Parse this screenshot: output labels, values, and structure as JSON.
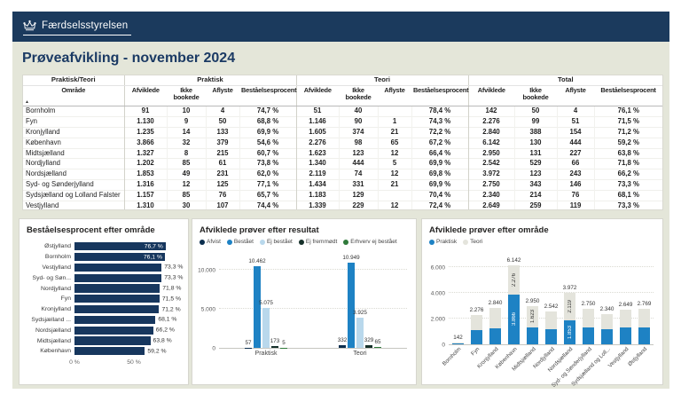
{
  "app": {
    "logo_text": "Færdselsstyrelsen"
  },
  "page": {
    "title": "Prøveafvikling - november 2024"
  },
  "colors": {
    "header_navy": "#1b3a5d",
    "page_background": "#e4e6d9",
    "bar_navy": "#17375e",
    "praktisk_blue": "#1e82c4",
    "teori_gray": "#e4e4dc"
  },
  "table": {
    "corner_header": "Praktisk/Teori",
    "corner_sub": "Område",
    "groups": [
      "Praktisk",
      "Teori",
      "Total"
    ],
    "sub_columns": [
      "Afviklede",
      "Ikke bookede",
      "Aflyste",
      "Beståelsesprocent"
    ],
    "rows": [
      {
        "area": "Bornholm",
        "cells": [
          "91",
          "10",
          "4",
          "74,7 %",
          "51",
          "40",
          "",
          "78,4 %",
          "142",
          "50",
          "4",
          "76,1 %"
        ]
      },
      {
        "area": "Fyn",
        "cells": [
          "1.130",
          "9",
          "50",
          "68,8 %",
          "1.146",
          "90",
          "1",
          "74,3 %",
          "2.276",
          "99",
          "51",
          "71,5 %"
        ]
      },
      {
        "area": "Kronjylland",
        "cells": [
          "1.235",
          "14",
          "133",
          "69,9 %",
          "1.605",
          "374",
          "21",
          "72,2 %",
          "2.840",
          "388",
          "154",
          "71,2 %"
        ]
      },
      {
        "area": "København",
        "cells": [
          "3.866",
          "32",
          "379",
          "54,6 %",
          "2.276",
          "98",
          "65",
          "67,2 %",
          "6.142",
          "130",
          "444",
          "59,2 %"
        ]
      },
      {
        "area": "Midtsjælland",
        "cells": [
          "1.327",
          "8",
          "215",
          "60,7 %",
          "1.623",
          "123",
          "12",
          "66,4 %",
          "2.950",
          "131",
          "227",
          "63,8 %"
        ]
      },
      {
        "area": "Nordjylland",
        "cells": [
          "1.202",
          "85",
          "61",
          "73,8 %",
          "1.340",
          "444",
          "5",
          "69,9 %",
          "2.542",
          "529",
          "66",
          "71,8 %"
        ]
      },
      {
        "area": "Nordsjælland",
        "cells": [
          "1.853",
          "49",
          "231",
          "62,0 %",
          "2.119",
          "74",
          "12",
          "69,8 %",
          "3.972",
          "123",
          "243",
          "66,2 %"
        ]
      },
      {
        "area": "Syd- og Sønderjylland",
        "cells": [
          "1.316",
          "12",
          "125",
          "77,1 %",
          "1.434",
          "331",
          "21",
          "69,9 %",
          "2.750",
          "343",
          "146",
          "73,3 %"
        ]
      },
      {
        "area": "Sydsjælland og Lolland Falster",
        "cells": [
          "1.157",
          "85",
          "76",
          "65,7 %",
          "1.183",
          "129",
          "",
          "70,4 %",
          "2.340",
          "214",
          "76",
          "68,1 %"
        ]
      },
      {
        "area": "Vestjylland",
        "cells": [
          "1.310",
          "30",
          "107",
          "74,4 %",
          "1.339",
          "229",
          "12",
          "72,4 %",
          "2.649",
          "259",
          "119",
          "73,3 %"
        ]
      },
      {
        "area": "Østjylland",
        "cells": [
          "1.285",
          "58",
          "108",
          "82,0 %",
          "1.484",
          "281",
          "11",
          "72,2 %",
          "2.769",
          "339",
          "119",
          "76,7 %"
        ]
      }
    ],
    "total_row": {
      "area": "Total",
      "cells": [
        "15.772",
        "392",
        "1.489",
        "66,3 %",
        "15.600",
        "2.213",
        "160",
        "70,2 %",
        "31.372",
        "2.605",
        "1.649",
        "68,2 %"
      ]
    }
  },
  "chart_data": [
    {
      "type": "bar",
      "title": "Beståelsesprocent efter område",
      "orientation": "horizontal",
      "bar_color": "#17375e",
      "axis_max": 88,
      "x_ticks": [
        {
          "label": "0 %",
          "value": 0
        },
        {
          "label": "50 %",
          "value": 50
        }
      ],
      "bars": [
        {
          "label": "Østjylland",
          "value": 76.7,
          "text": "76,7 %",
          "inside": true
        },
        {
          "label": "Bornholm",
          "value": 76.1,
          "text": "76,1 %",
          "inside": true
        },
        {
          "label": "Vestjylland",
          "value": 73.3,
          "text": "73,3 %",
          "inside": false
        },
        {
          "label": "Syd- og Søn...",
          "value": 73.3,
          "text": "73,3 %",
          "inside": false
        },
        {
          "label": "Nordjylland",
          "value": 71.8,
          "text": "71,8 %",
          "inside": false
        },
        {
          "label": "Fyn",
          "value": 71.5,
          "text": "71,5 %",
          "inside": false
        },
        {
          "label": "Kronjylland",
          "value": 71.2,
          "text": "71,2 %",
          "inside": false
        },
        {
          "label": "Sydsjælland ...",
          "value": 68.1,
          "text": "68,1 %",
          "inside": false
        },
        {
          "label": "Nordsjælland",
          "value": 66.2,
          "text": "66,2 %",
          "inside": false
        },
        {
          "label": "Midtsjælland",
          "value": 63.8,
          "text": "63,8 %",
          "inside": false
        },
        {
          "label": "København",
          "value": 59.2,
          "text": "59,2 %",
          "inside": false
        }
      ]
    },
    {
      "type": "bar",
      "title": "Afviklede prøver efter resultat",
      "orientation": "vertical-grouped",
      "axis_max": 11400,
      "y_ticks": [
        {
          "label": "0",
          "value": 0
        },
        {
          "label": "5.000",
          "value": 5000
        },
        {
          "label": "10.000",
          "value": 10000
        }
      ],
      "series": [
        {
          "name": "Afvist",
          "color": "#0b2e4e"
        },
        {
          "name": "Bestået",
          "color": "#1e82c4"
        },
        {
          "name": "Ej bestået",
          "color": "#b9d8ec"
        },
        {
          "name": "Ej fremmødt",
          "color": "#16302a"
        },
        {
          "name": "Erhverv ej bestået",
          "color": "#2f7a3a"
        }
      ],
      "groups": [
        {
          "label": "Praktisk",
          "values": [
            57,
            10462,
            5075,
            173,
            5
          ],
          "labels": [
            "57",
            "10.462",
            "5.075",
            "173",
            "5"
          ]
        },
        {
          "label": "Teori",
          "values": [
            332,
            10949,
            3925,
            329,
            65
          ],
          "labels": [
            "332",
            "10.949",
            "3.925",
            "329",
            "65"
          ]
        }
      ]
    },
    {
      "type": "bar",
      "title": "Afviklede prøver efter område",
      "orientation": "vertical-stacked",
      "axis_max": 6600,
      "y_ticks": [
        {
          "label": "0",
          "value": 0
        },
        {
          "label": "2.000",
          "value": 2000
        },
        {
          "label": "4.000",
          "value": 4000
        },
        {
          "label": "6.000",
          "value": 6000
        }
      ],
      "legend": [
        {
          "name": "Praktisk",
          "color": "#1e82c4"
        },
        {
          "name": "Teori",
          "color": "#e4e4dc"
        }
      ],
      "bars": [
        {
          "label": "Bornholm",
          "praktisk": 91,
          "teori": 51,
          "total": "142",
          "p_label": "",
          "t_label": ""
        },
        {
          "label": "Fyn",
          "praktisk": 1130,
          "teori": 1146,
          "total": "2.276",
          "p_label": "",
          "t_label": ""
        },
        {
          "label": "Kronjylland",
          "praktisk": 1235,
          "teori": 1605,
          "total": "2.840",
          "p_label": "",
          "t_label": ""
        },
        {
          "label": "København",
          "praktisk": 3866,
          "teori": 2276,
          "total": "6.142",
          "p_label": "3.866",
          "t_label": "2.276"
        },
        {
          "label": "Midtsjælland",
          "praktisk": 1327,
          "teori": 1623,
          "total": "2.950",
          "p_label": "",
          "t_label": "1.623"
        },
        {
          "label": "Nordjylland",
          "praktisk": 1202,
          "teori": 1340,
          "total": "2.542",
          "p_label": "",
          "t_label": ""
        },
        {
          "label": "Nordsjælland",
          "praktisk": 1853,
          "teori": 2119,
          "total": "3.972",
          "p_label": "1.853",
          "t_label": "2.119"
        },
        {
          "label": "Syd- og Sønderjylland",
          "praktisk": 1316,
          "teori": 1434,
          "total": "2.750",
          "p_label": "",
          "t_label": ""
        },
        {
          "label": "Sydsjælland og Loll...",
          "praktisk": 1157,
          "teori": 1183,
          "total": "2.340",
          "p_label": "",
          "t_label": ""
        },
        {
          "label": "Vestjylland",
          "praktisk": 1310,
          "teori": 1339,
          "total": "2.649",
          "p_label": "",
          "t_label": ""
        },
        {
          "label": "Østjylland",
          "praktisk": 1285,
          "teori": 1484,
          "total": "2.769",
          "p_label": "",
          "t_label": ""
        }
      ]
    }
  ]
}
